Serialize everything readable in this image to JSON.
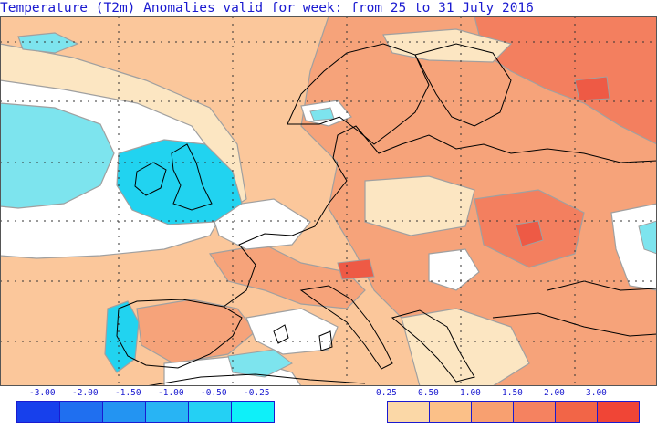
{
  "title": "Temperature (T2m) Anomalies valid for week: from 25 to 31 July 2016",
  "colors": {
    "background": "#ffffff",
    "text": "#1a1ad0",
    "outline": "#a0a0a0",
    "coast": "#000000",
    "grid": "#333333",
    "pos1": "#fce6c2",
    "pos2": "#fbc79b",
    "pos3": "#f6a37a",
    "pos4": "#f37f5f",
    "pos5": "#ee5a45",
    "neg1": "#7de4ee",
    "neg2": "#21d3f0"
  },
  "legend": {
    "negative": {
      "ticks": [
        "-3.00",
        "-2.00",
        "-1.50",
        "-1.00",
        "-0.50",
        "-0.25"
      ],
      "colors": [
        "#1740ec",
        "#1f6ff0",
        "#2394f2",
        "#28b4f4",
        "#24d0f4",
        "#0ef0f9"
      ]
    },
    "positive": {
      "ticks": [
        "0.25",
        "0.50",
        "1.00",
        "1.50",
        "2.00",
        "3.00"
      ],
      "colors": [
        "#fbd8a7",
        "#fbc088",
        "#f8a070",
        "#f58260",
        "#f26547",
        "#f04536"
      ]
    }
  }
}
